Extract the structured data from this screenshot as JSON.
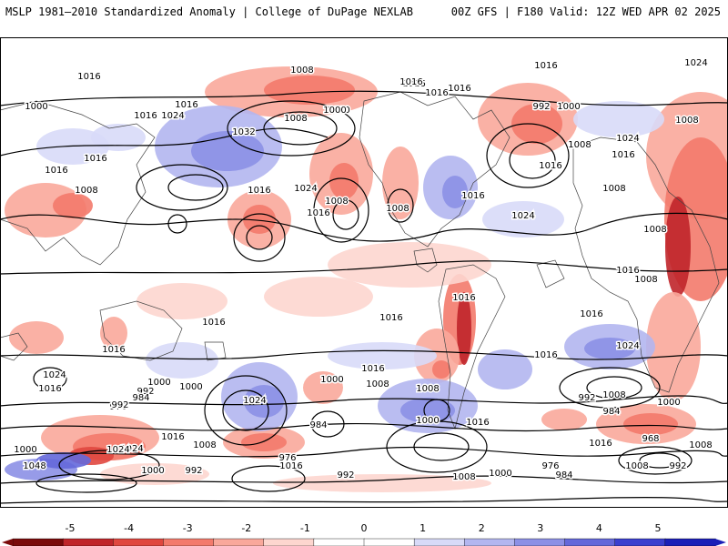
{
  "header": {
    "left": "MSLP 1981–2010 Standardized Anomaly | College of DuPage NEXLAB",
    "right": "00Z GFS | F180 Valid: 12Z WED APR 02 2025"
  },
  "colors": {
    "neg_scale": [
      "#fdd6cf",
      "#f9a89b",
      "#f37a6c",
      "#e0473f",
      "#c0252a",
      "#7a0a0a"
    ],
    "pos_scale": [
      "#d8daf8",
      "#b3b6f0",
      "#8c90e6",
      "#6468da",
      "#3b3fcf",
      "#1b1fb8"
    ],
    "contour": "#000000",
    "land_outline": "#444444"
  },
  "colorbar": {
    "ticks": [
      "-5",
      "-4",
      "-3",
      "-2",
      "-1",
      "0",
      "1",
      "2",
      "3",
      "4",
      "5"
    ]
  },
  "isobar_labels": [
    "1024",
    "1016",
    "1016",
    "1024",
    "1016",
    "1032",
    "1008",
    "1000",
    "1008",
    "1016",
    "1016",
    "1016",
    "1016",
    "1008",
    "1016",
    "1024",
    "1016",
    "1008",
    "1016",
    "1008",
    "1024",
    "1016",
    "1000",
    "1016",
    "992",
    "1000",
    "1008",
    "1024",
    "1008",
    "1016",
    "1016",
    "1024",
    "1016",
    "1008",
    "1016",
    "1008",
    "1008",
    "1016",
    "1016",
    "1016",
    "1024",
    "1016",
    "1016",
    "1016",
    "1016",
    "1024",
    "1008",
    "1024",
    "1016",
    "1000",
    "1008",
    "992",
    "984",
    "1000",
    "992",
    "1000",
    "976",
    "984",
    "992",
    "1000",
    "1016",
    "1024",
    "1008",
    "1048",
    "1024",
    "1000",
    "992",
    "1000",
    "1016",
    "976",
    "984",
    "992",
    "1008",
    "1000",
    "984",
    "968",
    "1016",
    "1008",
    "1008",
    "992",
    "1000",
    "976",
    "1000",
    "1008",
    "1016",
    "1016",
    "1000"
  ],
  "map_labels": {
    "feature": "global-mslp-anomaly-map"
  }
}
